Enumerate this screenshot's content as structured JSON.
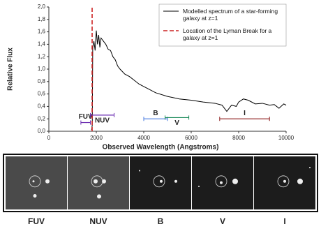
{
  "chart_data": {
    "type": "line",
    "xlabel": "Observed Wavelength (Angstroms)",
    "ylabel": "Relative Flux",
    "xlim": [
      0,
      10000
    ],
    "ylim": [
      0,
      2.0
    ],
    "xticks": [
      0,
      2000,
      4000,
      6000,
      8000,
      10000
    ],
    "yticks": [
      {
        "value": 0,
        "label": "0,0"
      },
      {
        "value": 0.2,
        "label": "0,2"
      },
      {
        "value": 0.4,
        "label": "0,4"
      },
      {
        "value": 0.6,
        "label": "0,6"
      },
      {
        "value": 0.8,
        "label": "0,8"
      },
      {
        "value": 1.0,
        "label": "1,0"
      },
      {
        "value": 1.2,
        "label": "1,2"
      },
      {
        "value": 1.4,
        "label": "1,4"
      },
      {
        "value": 1.6,
        "label": "1,6"
      },
      {
        "value": 1.8,
        "label": "1,8"
      },
      {
        "value": 2.0,
        "label": "2,0"
      }
    ],
    "series": [
      {
        "name": "Modelled spectrum of a star-forming galaxy at z=1",
        "color": "#000000",
        "x": [
          1800,
          1830,
          1850,
          1900,
          1950,
          2000,
          2050,
          2100,
          2150,
          2200,
          2300,
          2400,
          2500,
          2600,
          2700,
          2800,
          2900,
          3000,
          3200,
          3400,
          3600,
          3800,
          4000,
          4200,
          4500,
          5000,
          5500,
          6000,
          6500,
          7000,
          7300,
          7500,
          7700,
          7900,
          8000,
          8200,
          8400,
          8700,
          9000,
          9300,
          9500,
          9700,
          9900,
          10000
        ],
        "values": [
          0.02,
          0.1,
          1.35,
          1.45,
          1.3,
          1.62,
          1.4,
          1.55,
          1.35,
          1.5,
          1.45,
          1.4,
          1.32,
          1.3,
          1.2,
          1.15,
          1.05,
          1.0,
          0.92,
          0.88,
          0.82,
          0.76,
          0.72,
          0.68,
          0.62,
          0.56,
          0.52,
          0.5,
          0.47,
          0.45,
          0.42,
          0.32,
          0.42,
          0.4,
          0.47,
          0.52,
          0.5,
          0.44,
          0.45,
          0.42,
          0.43,
          0.37,
          0.44,
          0.42
        ]
      },
      {
        "name": "Location of the Lyman Break for a galaxy at z=1",
        "color": "#cc2222",
        "dashed": true,
        "x": [
          1824,
          1824
        ],
        "values": [
          0,
          2.0
        ]
      }
    ],
    "bands": [
      {
        "name": "FUV",
        "x": [
          1350,
          1750
        ],
        "y": 0.14,
        "color": "#6a2bb0"
      },
      {
        "name": "NUV",
        "x": [
          1750,
          2750
        ],
        "y": 0.26,
        "color": "#6a2bb0"
      },
      {
        "name": "B",
        "x": [
          4000,
          5000
        ],
        "y": 0.2,
        "color": "#4a7be0"
      },
      {
        "name": "V",
        "x": [
          4900,
          5900
        ],
        "y": 0.22,
        "color": "#1a8a5a"
      },
      {
        "name": "I",
        "x": [
          7200,
          9300
        ],
        "y": 0.2,
        "color": "#8b1a1a"
      }
    ],
    "panel_labels": [
      "FUV",
      "NUV",
      "B",
      "V",
      "I"
    ],
    "panel_colors": [
      "#4b1f8f",
      "#7a3ad0",
      "#4a7be0",
      "#1a8a5a",
      "#8b1a1a"
    ]
  }
}
